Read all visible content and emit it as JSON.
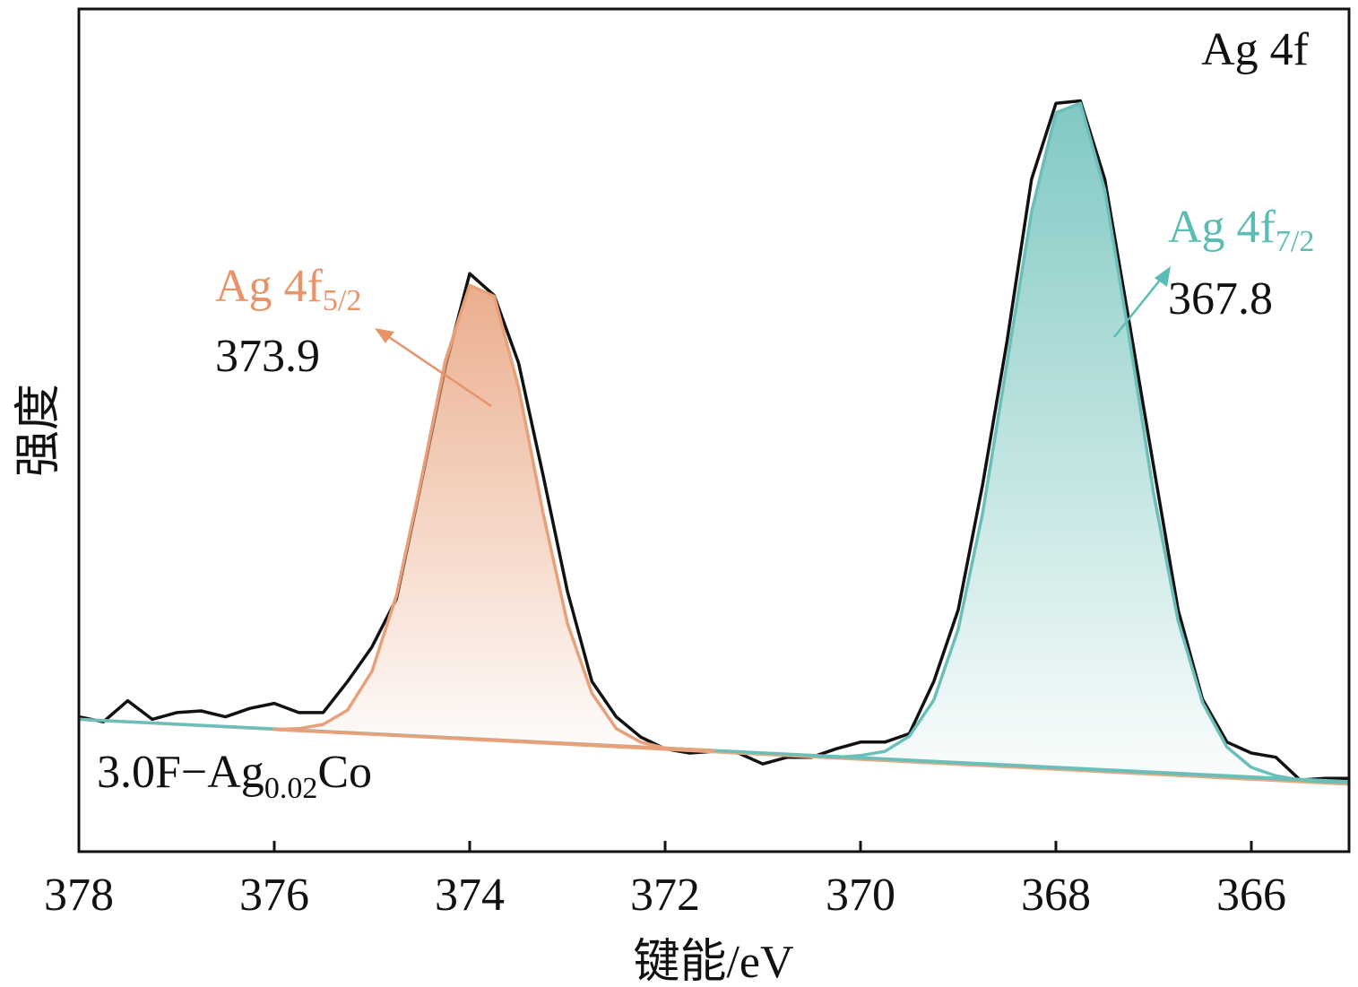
{
  "chart_data": {
    "type": "line",
    "title": "Ag 4f",
    "xlabel": "键能/eV",
    "ylabel": "强度",
    "xlim": [
      378,
      365
    ],
    "ylim": [
      0,
      100
    ],
    "xticks": [
      378,
      376,
      374,
      372,
      370,
      368,
      366
    ],
    "sample": [
      "3.0F−Ag",
      "0.02",
      "Co"
    ],
    "annotations": [
      {
        "text": "Ag 4f",
        "sub": "5/2",
        "value": 373.9,
        "color": "#e8946a"
      },
      {
        "text": "Ag 4f",
        "sub": "7/2",
        "value": 367.8,
        "color": "#5bbcb5"
      }
    ],
    "series": [
      {
        "color": "#111111",
        "fill": false,
        "x": [
          378,
          377.75,
          377.5,
          377.25,
          377,
          376.75,
          376.5,
          376.25,
          376,
          375.75,
          375.5,
          375.25,
          375,
          374.75,
          374.5,
          374.25,
          374,
          373.75,
          373.5,
          373.25,
          373,
          372.75,
          372.5,
          372.25,
          372,
          371.75,
          371.5,
          371.25,
          371,
          370.75,
          370.5,
          370.25,
          370,
          369.75,
          369.5,
          369.25,
          369,
          368.75,
          368.5,
          368.25,
          368,
          367.75,
          367.5,
          367.25,
          367,
          366.75,
          366.5,
          366.25,
          366,
          365.75,
          365.5,
          365.25,
          365
        ],
        "values": [
          16.0,
          15.4,
          17.9,
          15.7,
          16.5,
          16.7,
          16.0,
          17.0,
          17.6,
          16.5,
          16.5,
          20.2,
          24.3,
          30.0,
          43.6,
          57.4,
          68.6,
          66.0,
          58.0,
          44.7,
          30.9,
          20.2,
          16.0,
          13.6,
          12.2,
          11.7,
          11.9,
          11.7,
          10.4,
          11.2,
          11.2,
          12.2,
          13.0,
          13.0,
          14.0,
          20.2,
          28.7,
          43.6,
          60.6,
          79.8,
          88.8,
          89.1,
          79.8,
          62.8,
          45.7,
          28.7,
          18.1,
          13.0,
          11.7,
          11.2,
          8.5,
          8.7,
          8.7
        ]
      },
      {
        "color": "#e8a97f",
        "fill": false,
        "x": [
          378,
          365
        ],
        "values": [
          15.7,
          8.0
        ]
      },
      {
        "color": "#6bbfb8",
        "fill": false,
        "x": [
          378,
          365
        ],
        "values": [
          15.7,
          8.3
        ]
      },
      {
        "color": "#e8a07a",
        "fill": true,
        "x": [
          376,
          375.75,
          375.5,
          375.25,
          375,
          374.75,
          374.5,
          374.25,
          374,
          373.75,
          373.5,
          373.25,
          373,
          372.75,
          372.5,
          372.25,
          372,
          371.75,
          371.5
        ],
        "values": [
          14.5,
          14.6,
          15.1,
          16.8,
          21.4,
          30.4,
          43.9,
          58.2,
          67.2,
          65.9,
          55.1,
          40.2,
          27.1,
          18.8,
          14.6,
          13.0,
          12.3,
          12.1,
          12.0
        ]
      },
      {
        "color": "#6bbfb8",
        "fill": true,
        "x": [
          370.5,
          370.25,
          370,
          369.75,
          369.5,
          369.25,
          369,
          368.75,
          368.5,
          368.25,
          368,
          367.75,
          367.5,
          367.25,
          367,
          366.75,
          366.5,
          366.25,
          366,
          365.75,
          365.5,
          365.25,
          365
        ],
        "values": [
          11.4,
          11.2,
          11.4,
          11.9,
          13.7,
          18.0,
          26.4,
          40.2,
          58.0,
          75.9,
          87.7,
          88.8,
          78.5,
          61.0,
          42.5,
          27.4,
          17.7,
          12.4,
          10.0,
          9.0,
          8.5,
          8.3,
          8.2
        ]
      }
    ]
  }
}
